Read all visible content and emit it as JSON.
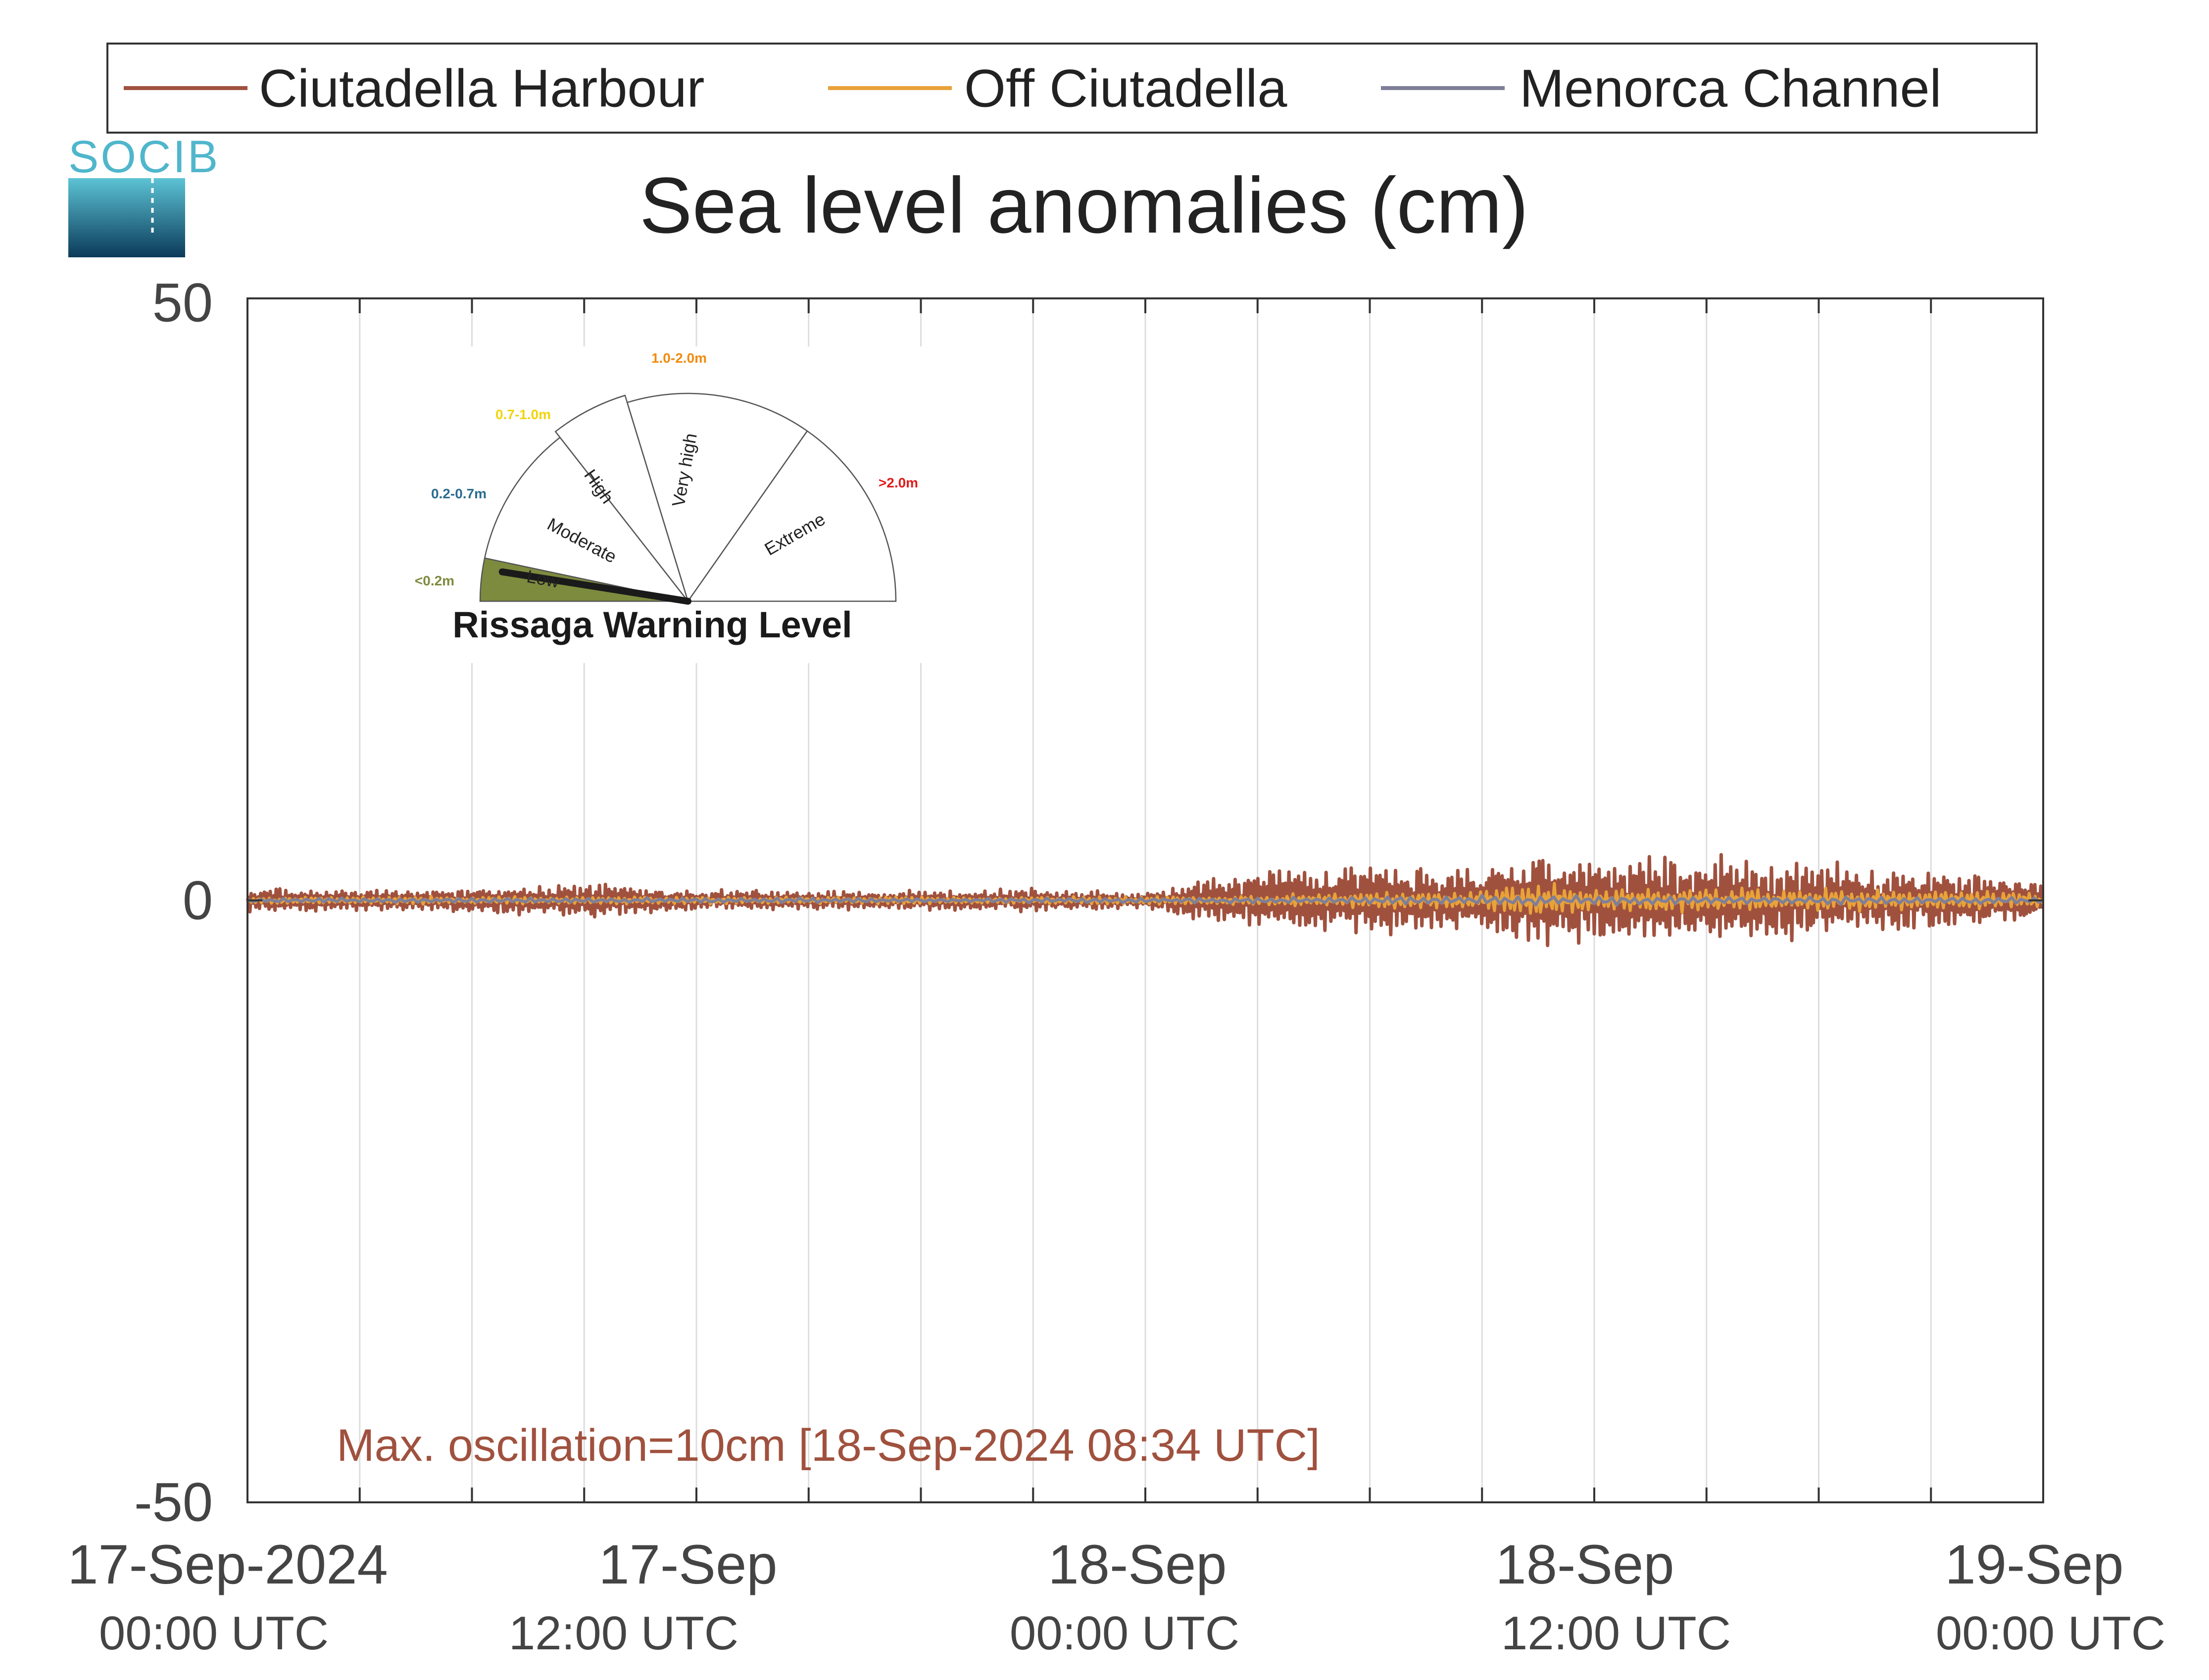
{
  "logo": {
    "text": "SOCIB"
  },
  "chart_data": {
    "type": "line",
    "title": "Sea level anomalies (cm)",
    "ylim": [
      -50,
      50
    ],
    "yticks": [
      "50",
      "0",
      "-50"
    ],
    "xlim_hours": [
      0,
      48
    ],
    "xticks": [
      {
        "line1": "17-Sep-2024",
        "line2": "00:00 UTC",
        "hour": 0
      },
      {
        "line1": "17-Sep",
        "line2": "12:00 UTC",
        "hour": 12
      },
      {
        "line1": "18-Sep",
        "line2": "00:00 UTC",
        "hour": 24
      },
      {
        "line1": "18-Sep",
        "line2": "12:00 UTC",
        "hour": 36
      },
      {
        "line1": "19-Sep",
        "line2": "00:00 UTC",
        "hour": 48
      }
    ],
    "grid_hours": [
      3,
      6,
      9,
      12,
      15,
      18,
      21,
      24,
      27,
      30,
      33,
      36,
      39,
      42,
      45
    ],
    "legend_position": "top",
    "series": [
      {
        "name": "Ciutadella Harbour",
        "color": "#a0513e",
        "envelope_hours": [
          0,
          3,
          6,
          9,
          12,
          15,
          18,
          21,
          24,
          27,
          30,
          33,
          34,
          36,
          38,
          40,
          42,
          45,
          48
        ],
        "envelope_amp": [
          1.0,
          0.8,
          1.0,
          1.4,
          0.8,
          0.8,
          0.8,
          0.9,
          0.6,
          2.5,
          2.8,
          2.6,
          4.5,
          3.5,
          3.5,
          3.5,
          3.0,
          2.5,
          1.5
        ]
      },
      {
        "name": "Off Ciutadella",
        "color": "#e8a23a",
        "envelope_hours": [
          0,
          12,
          24,
          30,
          33,
          34,
          36,
          40,
          45,
          48
        ],
        "envelope_amp": [
          0.3,
          0.3,
          0.3,
          0.6,
          0.8,
          1.5,
          1.0,
          1.0,
          0.8,
          0.6
        ]
      },
      {
        "name": "Menorca Channel",
        "color": "#7f7f98",
        "envelope_hours": [
          0,
          24,
          34,
          48
        ],
        "envelope_amp": [
          0.2,
          0.2,
          0.4,
          0.3
        ]
      }
    ],
    "annotation": {
      "text": "Max. oscillation=10cm [18-Sep-2024 08:34 UTC]",
      "color": "#a0513e"
    }
  },
  "gauge": {
    "title": "Rissaga Warning Level",
    "needle_value": "Low",
    "sectors": [
      {
        "label": "Low",
        "range": "<0.2m",
        "color": "#7d8b3e",
        "active": true
      },
      {
        "label": "Moderate",
        "range": "0.2-0.7m",
        "color": "#2a6c91",
        "active": false
      },
      {
        "label": "High",
        "range": "0.7-1.0m",
        "color": "#f2d40a",
        "active": false
      },
      {
        "label": "Very high",
        "range": "1.0-2.0m",
        "color": "#f08b0e",
        "active": false
      },
      {
        "label": "Extreme",
        "range": ">2.0m",
        "color": "#e11b1b",
        "active": false
      }
    ]
  }
}
